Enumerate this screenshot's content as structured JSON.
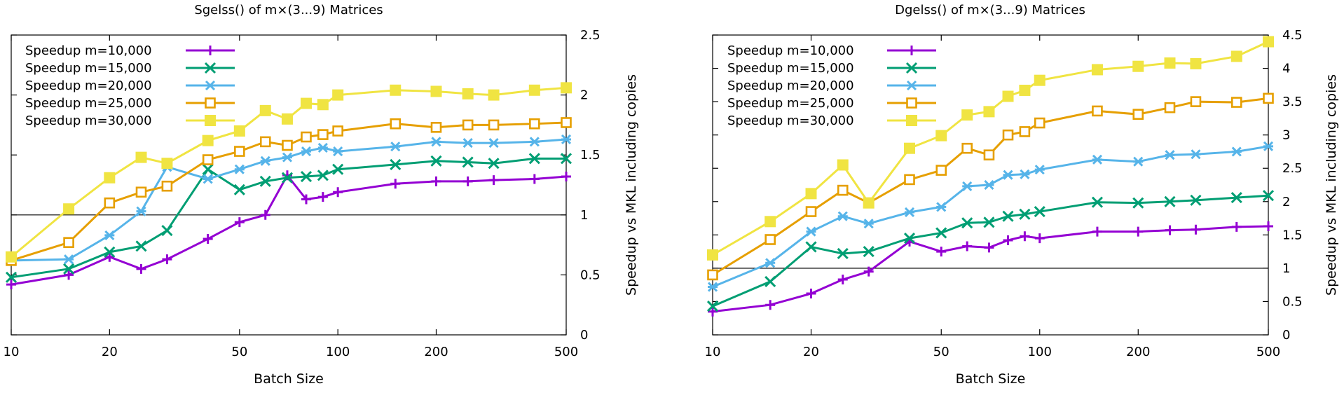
{
  "chart_data": [
    {
      "type": "line",
      "title": "Sgelss() of m×(3...9) Matrices",
      "xlabel": "Batch Size",
      "ylabel": "Speedup vs MKL including copies",
      "x_scale": "log",
      "xlim": [
        10,
        500
      ],
      "ylim": [
        0,
        2.5
      ],
      "x_ticks": [
        10,
        20,
        50,
        100,
        200,
        500
      ],
      "y_ticks": [
        0,
        0.5,
        1,
        1.5,
        2,
        2.5
      ],
      "y_axis_side": "right",
      "reference_line": 1,
      "legend_position": "top-left",
      "grid": false,
      "x": [
        10,
        15,
        20,
        25,
        30,
        40,
        50,
        60,
        70,
        80,
        90,
        100,
        150,
        200,
        250,
        300,
        400,
        500
      ],
      "series": [
        {
          "name": "Speedup m=10,000",
          "color": "#9400d3",
          "marker": "plus",
          "values": [
            0.42,
            0.5,
            0.65,
            0.55,
            0.63,
            0.8,
            0.94,
            1.0,
            1.33,
            1.13,
            1.15,
            1.19,
            1.26,
            1.28,
            1.28,
            1.29,
            1.3,
            1.32
          ]
        },
        {
          "name": "Speedup m=15,000",
          "color": "#009e73",
          "marker": "x",
          "values": [
            0.48,
            0.55,
            0.69,
            0.74,
            0.87,
            1.38,
            1.21,
            1.28,
            1.31,
            1.32,
            1.33,
            1.38,
            1.42,
            1.45,
            1.44,
            1.43,
            1.47,
            1.47
          ]
        },
        {
          "name": "Speedup m=20,000",
          "color": "#56b4e9",
          "marker": "asterisk",
          "values": [
            0.62,
            0.63,
            0.83,
            1.03,
            1.4,
            1.3,
            1.38,
            1.45,
            1.48,
            1.53,
            1.56,
            1.53,
            1.57,
            1.61,
            1.6,
            1.6,
            1.61,
            1.63
          ]
        },
        {
          "name": "Speedup m=25,000",
          "color": "#e69f00",
          "marker": "square-open",
          "values": [
            0.62,
            0.77,
            1.1,
            1.19,
            1.24,
            1.46,
            1.53,
            1.61,
            1.58,
            1.65,
            1.67,
            1.7,
            1.76,
            1.73,
            1.75,
            1.75,
            1.76,
            1.77
          ]
        },
        {
          "name": "Speedup m=30,000",
          "color": "#f0e442",
          "marker": "square-filled",
          "values": [
            0.65,
            1.05,
            1.31,
            1.48,
            1.43,
            1.62,
            1.7,
            1.87,
            1.8,
            1.93,
            1.92,
            2.0,
            2.04,
            2.03,
            2.01,
            2.0,
            2.04,
            2.06
          ]
        }
      ]
    },
    {
      "type": "line",
      "title": "Dgelss() of m×(3...9) Matrices",
      "xlabel": "Batch Size",
      "ylabel": "Speedup vs MKL including copies",
      "x_scale": "log",
      "xlim": [
        10,
        500
      ],
      "ylim": [
        0,
        4.5
      ],
      "x_ticks": [
        10,
        20,
        50,
        100,
        200,
        500
      ],
      "y_ticks": [
        0,
        0.5,
        1,
        1.5,
        2,
        2.5,
        3,
        3.5,
        4,
        4.5
      ],
      "y_axis_side": "right",
      "reference_line": 1,
      "legend_position": "top-left",
      "grid": false,
      "x": [
        10,
        15,
        20,
        25,
        30,
        40,
        50,
        60,
        70,
        80,
        90,
        100,
        150,
        200,
        250,
        300,
        400,
        500
      ],
      "series": [
        {
          "name": "Speedup m=10,000",
          "color": "#9400d3",
          "marker": "plus",
          "values": [
            0.35,
            0.45,
            0.62,
            0.83,
            0.95,
            1.4,
            1.25,
            1.33,
            1.31,
            1.42,
            1.48,
            1.45,
            1.55,
            1.55,
            1.57,
            1.58,
            1.62,
            1.63
          ]
        },
        {
          "name": "Speedup m=15,000",
          "color": "#009e73",
          "marker": "x",
          "values": [
            0.43,
            0.8,
            1.32,
            1.22,
            1.25,
            1.45,
            1.53,
            1.68,
            1.69,
            1.78,
            1.81,
            1.85,
            1.99,
            1.98,
            2.0,
            2.02,
            2.06,
            2.09
          ]
        },
        {
          "name": "Speedup m=20,000",
          "color": "#56b4e9",
          "marker": "asterisk",
          "values": [
            0.72,
            1.08,
            1.55,
            1.78,
            1.67,
            1.84,
            1.92,
            2.23,
            2.25,
            2.4,
            2.41,
            2.48,
            2.63,
            2.6,
            2.7,
            2.71,
            2.75,
            2.83
          ]
        },
        {
          "name": "Speedup m=25,000",
          "color": "#e69f00",
          "marker": "square-open",
          "values": [
            0.9,
            1.43,
            1.85,
            2.17,
            1.98,
            2.33,
            2.47,
            2.8,
            2.7,
            3.0,
            3.05,
            3.18,
            3.36,
            3.31,
            3.41,
            3.5,
            3.49,
            3.55
          ]
        },
        {
          "name": "Speedup m=30,000",
          "color": "#f0e442",
          "marker": "square-filled",
          "values": [
            1.2,
            1.7,
            2.12,
            2.55,
            1.98,
            2.8,
            2.99,
            3.3,
            3.35,
            3.58,
            3.67,
            3.82,
            3.98,
            4.03,
            4.08,
            4.07,
            4.18,
            4.4
          ]
        }
      ]
    }
  ]
}
